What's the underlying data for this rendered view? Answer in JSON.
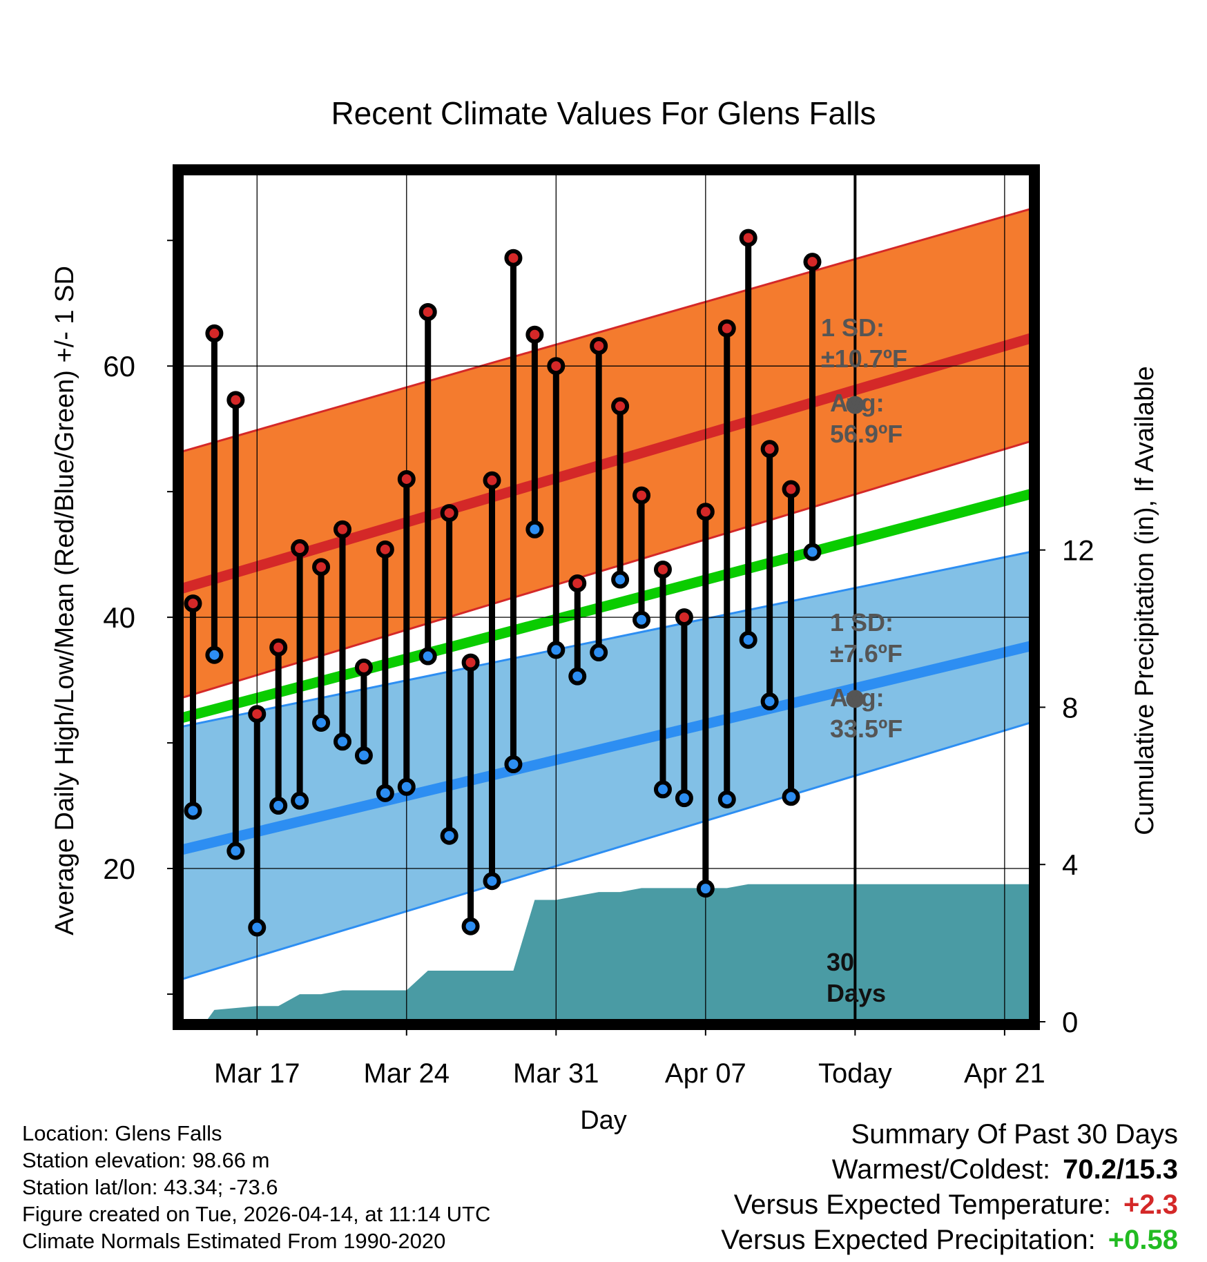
{
  "title": "Recent Climate Values For Glens Falls",
  "chart_data": {
    "type": "line",
    "title": "Recent Climate Values For Glens Falls",
    "xlabel": "Day",
    "ylabel": "Average Daily High/Low/Mean (Red/Blue/Green) +/- 1 SD",
    "y2label": "Cumulative Precipitation (in), If Available",
    "ylim": [
      7.8,
      75.4
    ],
    "y2lim": [
      0,
      21.6
    ],
    "xlim": [
      -0.5,
      39.2
    ],
    "x_ticks": [
      {
        "x": 3,
        "label": "Mar 17"
      },
      {
        "x": 10,
        "label": "Mar 24"
      },
      {
        "x": 17,
        "label": "Mar 31"
      },
      {
        "x": 24,
        "label": "Apr 07"
      },
      {
        "x": 31,
        "label": "Today"
      },
      {
        "x": 38,
        "label": "Apr 21"
      }
    ],
    "y_ticks": [
      20,
      40,
      60
    ],
    "y_minor_ticks": [
      10,
      30,
      50,
      70
    ],
    "y2_ticks": [
      0,
      4,
      8,
      12
    ],
    "normals": {
      "x": [
        -0.5,
        39.2
      ],
      "avg_high": [
        42.3,
        62.2
      ],
      "high_sd_upper": [
        53.2,
        72.5
      ],
      "high_sd_lower": [
        33.6,
        54.0
      ],
      "avg_mean": [
        32.0,
        49.8
      ],
      "avg_low": [
        21.5,
        37.7
      ],
      "low_sd_upper": [
        31.3,
        45.2
      ],
      "low_sd_lower": [
        11.2,
        31.6
      ]
    },
    "days": [
      0,
      1,
      2,
      3,
      4,
      5,
      6,
      7,
      8,
      9,
      10,
      11,
      12,
      13,
      14,
      15,
      16,
      17,
      18,
      19,
      20,
      21,
      22,
      23,
      24,
      25,
      26,
      27,
      28,
      29,
      30
    ],
    "highs": [
      41.1,
      62.6,
      57.3,
      32.3,
      37.6,
      45.5,
      44.0,
      47.0,
      36.0,
      45.4,
      51.0,
      64.3,
      48.3,
      36.4,
      50.9,
      68.6,
      62.5,
      60.0,
      42.7,
      61.6,
      56.8,
      49.7,
      43.8,
      40.0,
      48.4,
      63.0,
      70.2,
      53.4,
      50.2,
      68.3,
      null
    ],
    "lows": [
      24.6,
      37.0,
      21.4,
      15.3,
      25.0,
      25.4,
      31.6,
      30.1,
      29.0,
      26.0,
      26.5,
      36.9,
      22.6,
      15.4,
      19.0,
      28.3,
      47.0,
      37.4,
      35.3,
      37.2,
      43.0,
      39.8,
      26.3,
      25.6,
      18.4,
      25.5,
      38.2,
      33.3,
      25.7,
      45.2,
      null
    ],
    "cumulative_precip": {
      "x": [
        0.0,
        0.6,
        1.0,
        3.0,
        4.0,
        5.0,
        6.0,
        7.0,
        8.0,
        9.0,
        10.0,
        11.0,
        12.0,
        13.0,
        14.0,
        15.0,
        16.0,
        17.0,
        18.0,
        19.0,
        20.0,
        21.0,
        22.0,
        23.0,
        24.0,
        25.0,
        26.0,
        27.0,
        39.2
      ],
      "y": [
        0.0,
        0.0,
        0.3,
        0.4,
        0.4,
        0.7,
        0.7,
        0.8,
        0.8,
        0.8,
        0.8,
        1.3,
        1.3,
        1.3,
        1.3,
        1.3,
        3.1,
        3.1,
        3.2,
        3.3,
        3.3,
        3.4,
        3.4,
        3.4,
        3.4,
        3.4,
        3.5,
        3.5,
        3.5
      ]
    },
    "annotations": {
      "high_sd": "1 SD:",
      "high_sd_value": "±10.7ºF",
      "high_avg": "Avg:",
      "high_avg_value": "56.9ºF",
      "low_sd": "1 SD:",
      "low_sd_value": "±7.6ºF",
      "low_avg": "Avg:",
      "low_avg_value": "33.5ºF",
      "today_high_avg": 56.9,
      "today_low_avg": 33.5,
      "period": [
        "30",
        "Days"
      ]
    },
    "colors": {
      "high_band": "#f47b2e",
      "high_line": "#d42828",
      "low_band": "#82c0e6",
      "low_line": "#2d8ef2",
      "mean_line": "#0acc00",
      "precip": "#4a9ba4",
      "annotation": "#555555",
      "high_dot": "#d42828",
      "low_dot": "#2d8ef2"
    }
  },
  "station": {
    "location": "Location: Glens Falls",
    "elevation": "Station elevation: 98.66 m",
    "latlon": "Station lat/lon: 43.34; -73.6",
    "created": "Figure created on Tue, 2026-04-14, at 11:14 UTC",
    "normals": "Climate Normals Estimated From 1990-2020"
  },
  "summary": {
    "heading": "Summary Of Past 30 Days",
    "warm_cold_label": "Warmest/Coldest:",
    "warm_cold_value": "70.2/15.3",
    "temp_label": "Versus Expected Temperature:",
    "temp_value": "+2.3",
    "temp_color": "#d42828",
    "precip_label": "Versus Expected Precipitation:",
    "precip_value": "+0.58",
    "precip_color": "#22bb22"
  }
}
